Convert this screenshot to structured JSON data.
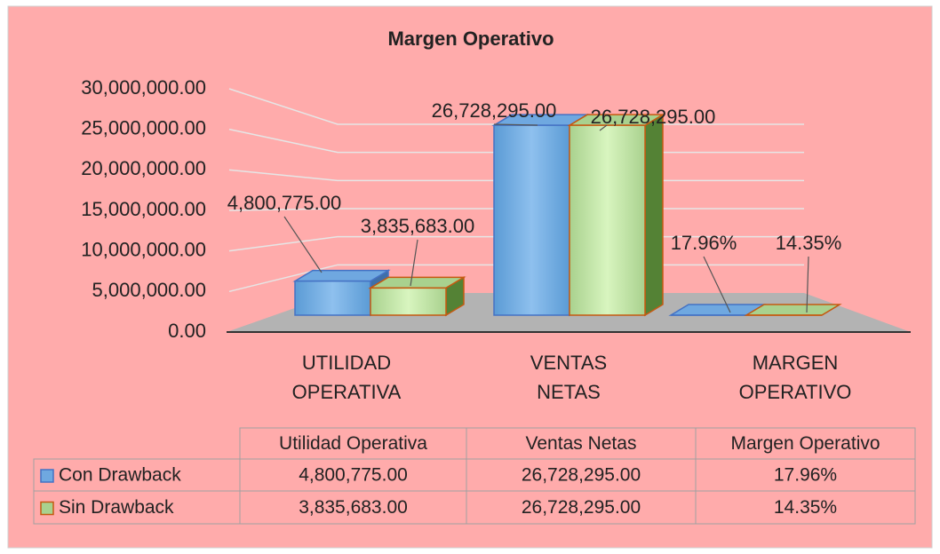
{
  "chart_data": {
    "type": "bar",
    "title": "Margen Operativo",
    "categories": [
      "UTILIDAD OPERATIVA",
      "VENTAS NETAS",
      "MARGEN OPERATIVO"
    ],
    "table_headers": [
      "Utilidad Operativa",
      "Ventas Netas",
      "Margen Operativo"
    ],
    "series": [
      {
        "name": "Con Drawback",
        "color": "#6fa8e0",
        "values": [
          4800775,
          26728295,
          0.1796
        ],
        "value_labels": [
          "4,800,775.00",
          "26,728,295.00",
          "17.96%"
        ]
      },
      {
        "name": "Sin Drawback",
        "color": "#a9d18e",
        "values": [
          3835683,
          26728295,
          0.1435
        ],
        "value_labels": [
          "3,835,683.00",
          "26,728,295.00",
          "14.35%"
        ]
      }
    ],
    "ylim": [
      0,
      30000000
    ],
    "yticks": [
      {
        "value": 0,
        "label": "0.00"
      },
      {
        "value": 5000000,
        "label": "5,000,000.00"
      },
      {
        "value": 10000000,
        "label": "10,000,000.00"
      },
      {
        "value": 15000000,
        "label": "15,000,000.00"
      },
      {
        "value": 20000000,
        "label": "20,000,000.00"
      },
      {
        "value": 25000000,
        "label": "25,000,000.00"
      },
      {
        "value": 30000000,
        "label": "30,000,000.00"
      }
    ],
    "grid": true
  }
}
